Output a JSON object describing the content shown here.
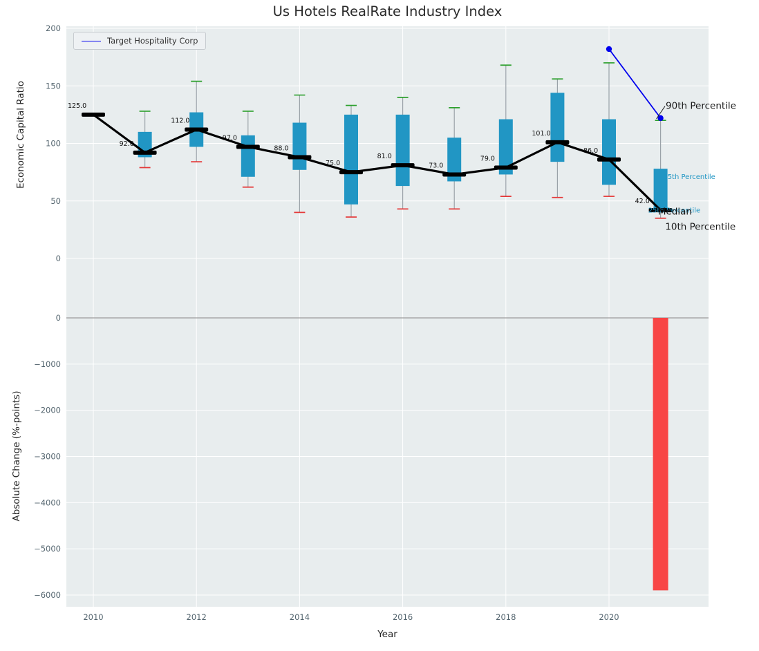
{
  "chart_data": {
    "type": "boxplot+line+bar",
    "title": "Us Hotels RealRate Industry Index",
    "xlabel": "Year",
    "x_tick_years": [
      2010,
      2012,
      2014,
      2016,
      2018,
      2020
    ],
    "x_tick_labels": [
      "2010",
      "2012",
      "2014",
      "2016",
      "2018",
      "2020"
    ],
    "style": {
      "figure_bg": "#ffffff",
      "panel_bg": "#e8edee",
      "grid_color": "#ffffff",
      "tick_color": "#54656f",
      "whisker_color": "#9aa2a8"
    },
    "panels": [
      {
        "name": "economic-capital-ratio",
        "ylabel": "Economic Capital Ratio",
        "ylim": [
          -37,
          200
        ],
        "ytick_values": [
          0,
          50,
          100,
          150,
          200
        ],
        "ytick_labels": [
          "0",
          "50",
          "100",
          "150",
          "200"
        ],
        "series_boxplot": {
          "years": [
            2010,
            2011,
            2012,
            2013,
            2014,
            2015,
            2016,
            2017,
            2018,
            2019,
            2020,
            2021
          ],
          "p10": [
            125,
            79,
            84,
            62,
            40,
            36,
            43,
            43,
            54,
            53,
            54,
            35
          ],
          "p25": [
            125,
            88,
            97,
            71,
            77,
            47,
            63,
            67,
            73,
            84,
            64,
            43
          ],
          "median": [
            125,
            92,
            112,
            97,
            88,
            75,
            81,
            73,
            79,
            101,
            86,
            42
          ],
          "p75": [
            125,
            110,
            127,
            107,
            118,
            125,
            125,
            105,
            121,
            144,
            121,
            78
          ],
          "p90": [
            125,
            128,
            154,
            128,
            142,
            133,
            140,
            131,
            168,
            156,
            170,
            120
          ],
          "median_labels": [
            "125.0",
            "92.0",
            "112.0",
            "97.0",
            "88.0",
            "75.0",
            "81.0",
            "73.0",
            "79.0",
            "101.0",
            "86.0",
            "42.0"
          ],
          "box_color": "#2196c4",
          "cap_top_color": "#2ca02c",
          "cap_bottom_color": "#e53939",
          "median_line_color": "#000000"
        },
        "series_target": {
          "name": "Target Hospitality Corp",
          "years": [
            2020,
            2021
          ],
          "values": [
            182,
            122
          ],
          "color": "#0000ee"
        },
        "annotations": [
          {
            "text": "90th Percentile",
            "x": 2021.1,
            "y": 130,
            "color": "#1a1a1a",
            "font_px": 13.5,
            "leader": true
          },
          {
            "text": "75th Percentile",
            "x": 2021.05,
            "y": 69,
            "color": "#2196c4",
            "font_px": 10
          },
          {
            "text": "25th Percentile",
            "x": 2020.76,
            "y": 40,
            "color": "#2196c4",
            "font_px": 10
          },
          {
            "text": "Median",
            "x": 2020.95,
            "y": 38,
            "color": "#111111",
            "font_px": 13.5
          },
          {
            "text": "10th Percentile",
            "x": 2021.09,
            "y": 25,
            "color": "#1a1a1a",
            "font_px": 13.5
          }
        ]
      },
      {
        "name": "absolute-change",
        "ylabel": "Absolute Change (%-points)",
        "ylim": [
          -6254,
          374
        ],
        "ytick_values": [
          0,
          -1000,
          -2000,
          -3000,
          -4000,
          -5000,
          -6000
        ],
        "ytick_labels": [
          "0",
          "−1000",
          "−2000",
          "−3000",
          "−4000",
          "−5000",
          "−6000"
        ],
        "zero_line_color": "#9a9a9a",
        "bars": [
          {
            "year": 2021,
            "value": -5900,
            "color": "#f84545"
          }
        ]
      }
    ]
  }
}
